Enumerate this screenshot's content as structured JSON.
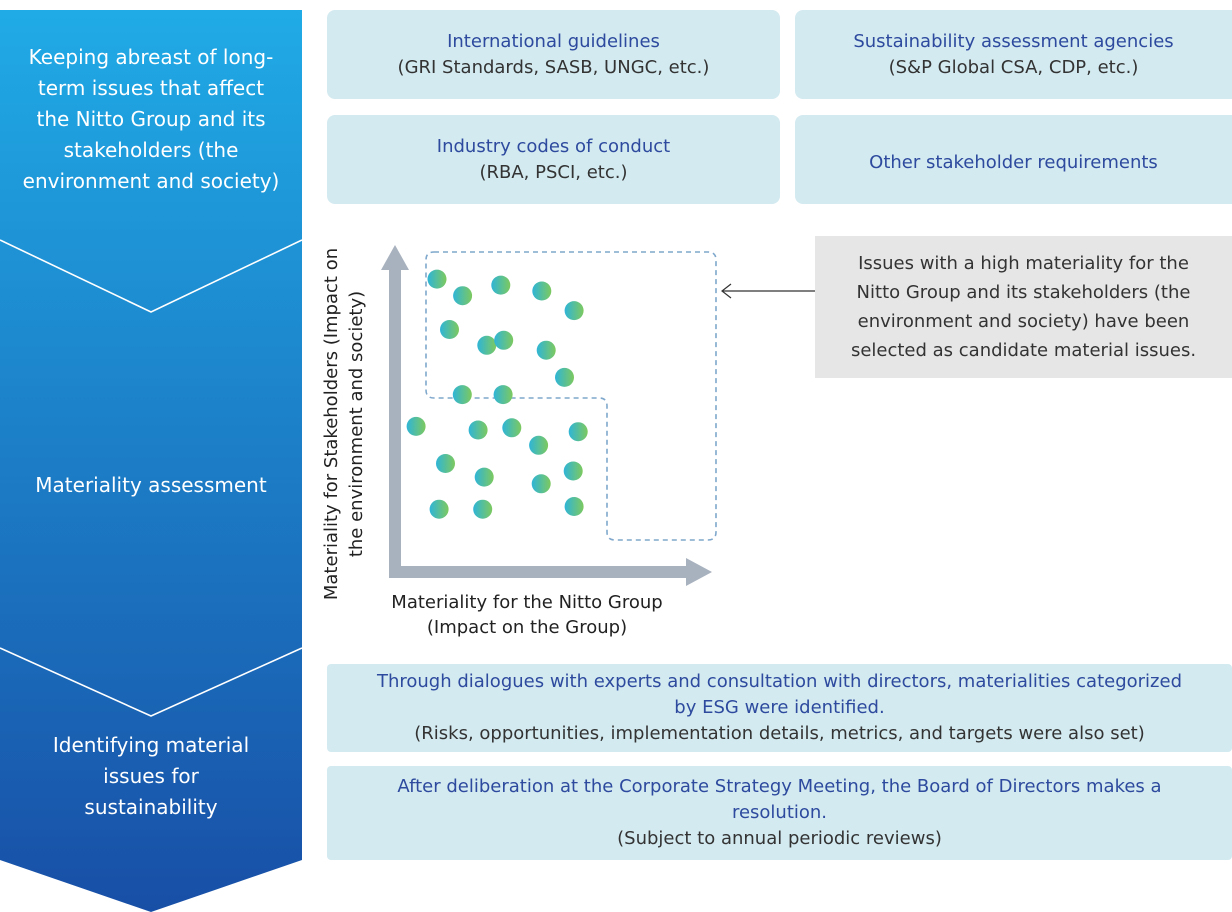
{
  "flow": {
    "stage1": "Keeping abreast of long-term issues that affect the Nitto Group and its stakeholders (the environment and society)",
    "stage2": "Materiality assessment",
    "stage3": "Identifying material issues for sustainability",
    "colors": {
      "top": "#20abe6",
      "bottom": "#184fa6",
      "divider": "#ffffff"
    }
  },
  "sources": {
    "intl_title": "International guidelines",
    "intl_sub": "(GRI Standards, SASB, UNGC, etc.)",
    "agencies_title": "Sustainability assessment agencies",
    "agencies_sub": "(S&P Global CSA, CDP, etc.)",
    "codes_title": "Industry codes of conduct",
    "codes_sub": "(RBA, PSCI, etc.)",
    "other_title": "Other stakeholder requirements",
    "box_color": "#d3eaf0"
  },
  "chart_data": {
    "type": "scatter",
    "xlabel": "Materiality for the Nitto Group (Impact on the Group)",
    "ylabel": "Materiality for Stakeholders (Impact on the environment and society)",
    "xlim": [
      0,
      10
    ],
    "ylim": [
      0,
      10
    ],
    "points": [
      [
        0.86,
        9.24
      ],
      [
        1.74,
        8.64
      ],
      [
        3.05,
        9.02
      ],
      [
        4.46,
        8.81
      ],
      [
        5.57,
        8.1
      ],
      [
        1.29,
        7.42
      ],
      [
        2.57,
        6.85
      ],
      [
        3.15,
        7.03
      ],
      [
        4.61,
        6.67
      ],
      [
        5.24,
        5.69
      ],
      [
        1.73,
        5.07
      ],
      [
        3.13,
        5.07
      ],
      [
        0.14,
        3.92
      ],
      [
        2.27,
        3.79
      ],
      [
        3.43,
        3.87
      ],
      [
        4.35,
        3.24
      ],
      [
        5.71,
        3.73
      ],
      [
        1.15,
        2.58
      ],
      [
        2.48,
        2.09
      ],
      [
        4.44,
        1.85
      ],
      [
        5.54,
        2.31
      ],
      [
        0.93,
        0.93
      ],
      [
        2.43,
        0.93
      ],
      [
        5.57,
        1.03
      ]
    ],
    "highlight_label": "Issues with a high materiality for the Nitto Group and its stakeholders (the environment and society) have been selected as candidate material issues.",
    "colors": {
      "axis": "#a8b2bf",
      "dot_from": "#2fb5d7",
      "dot_to": "#7dc95e",
      "region": "#7fa8cc"
    }
  },
  "outcomes": {
    "dialogue_title": "Through dialogues with experts and consultation with directors, materialities categorized by ESG were identified.",
    "dialogue_sub": "(Risks, opportunities, implementation details, metrics, and targets were also set)",
    "board_title": "After deliberation at the Corporate Strategy Meeting, the Board of Directors makes a resolution.",
    "board_sub": "(Subject to annual periodic reviews)"
  }
}
